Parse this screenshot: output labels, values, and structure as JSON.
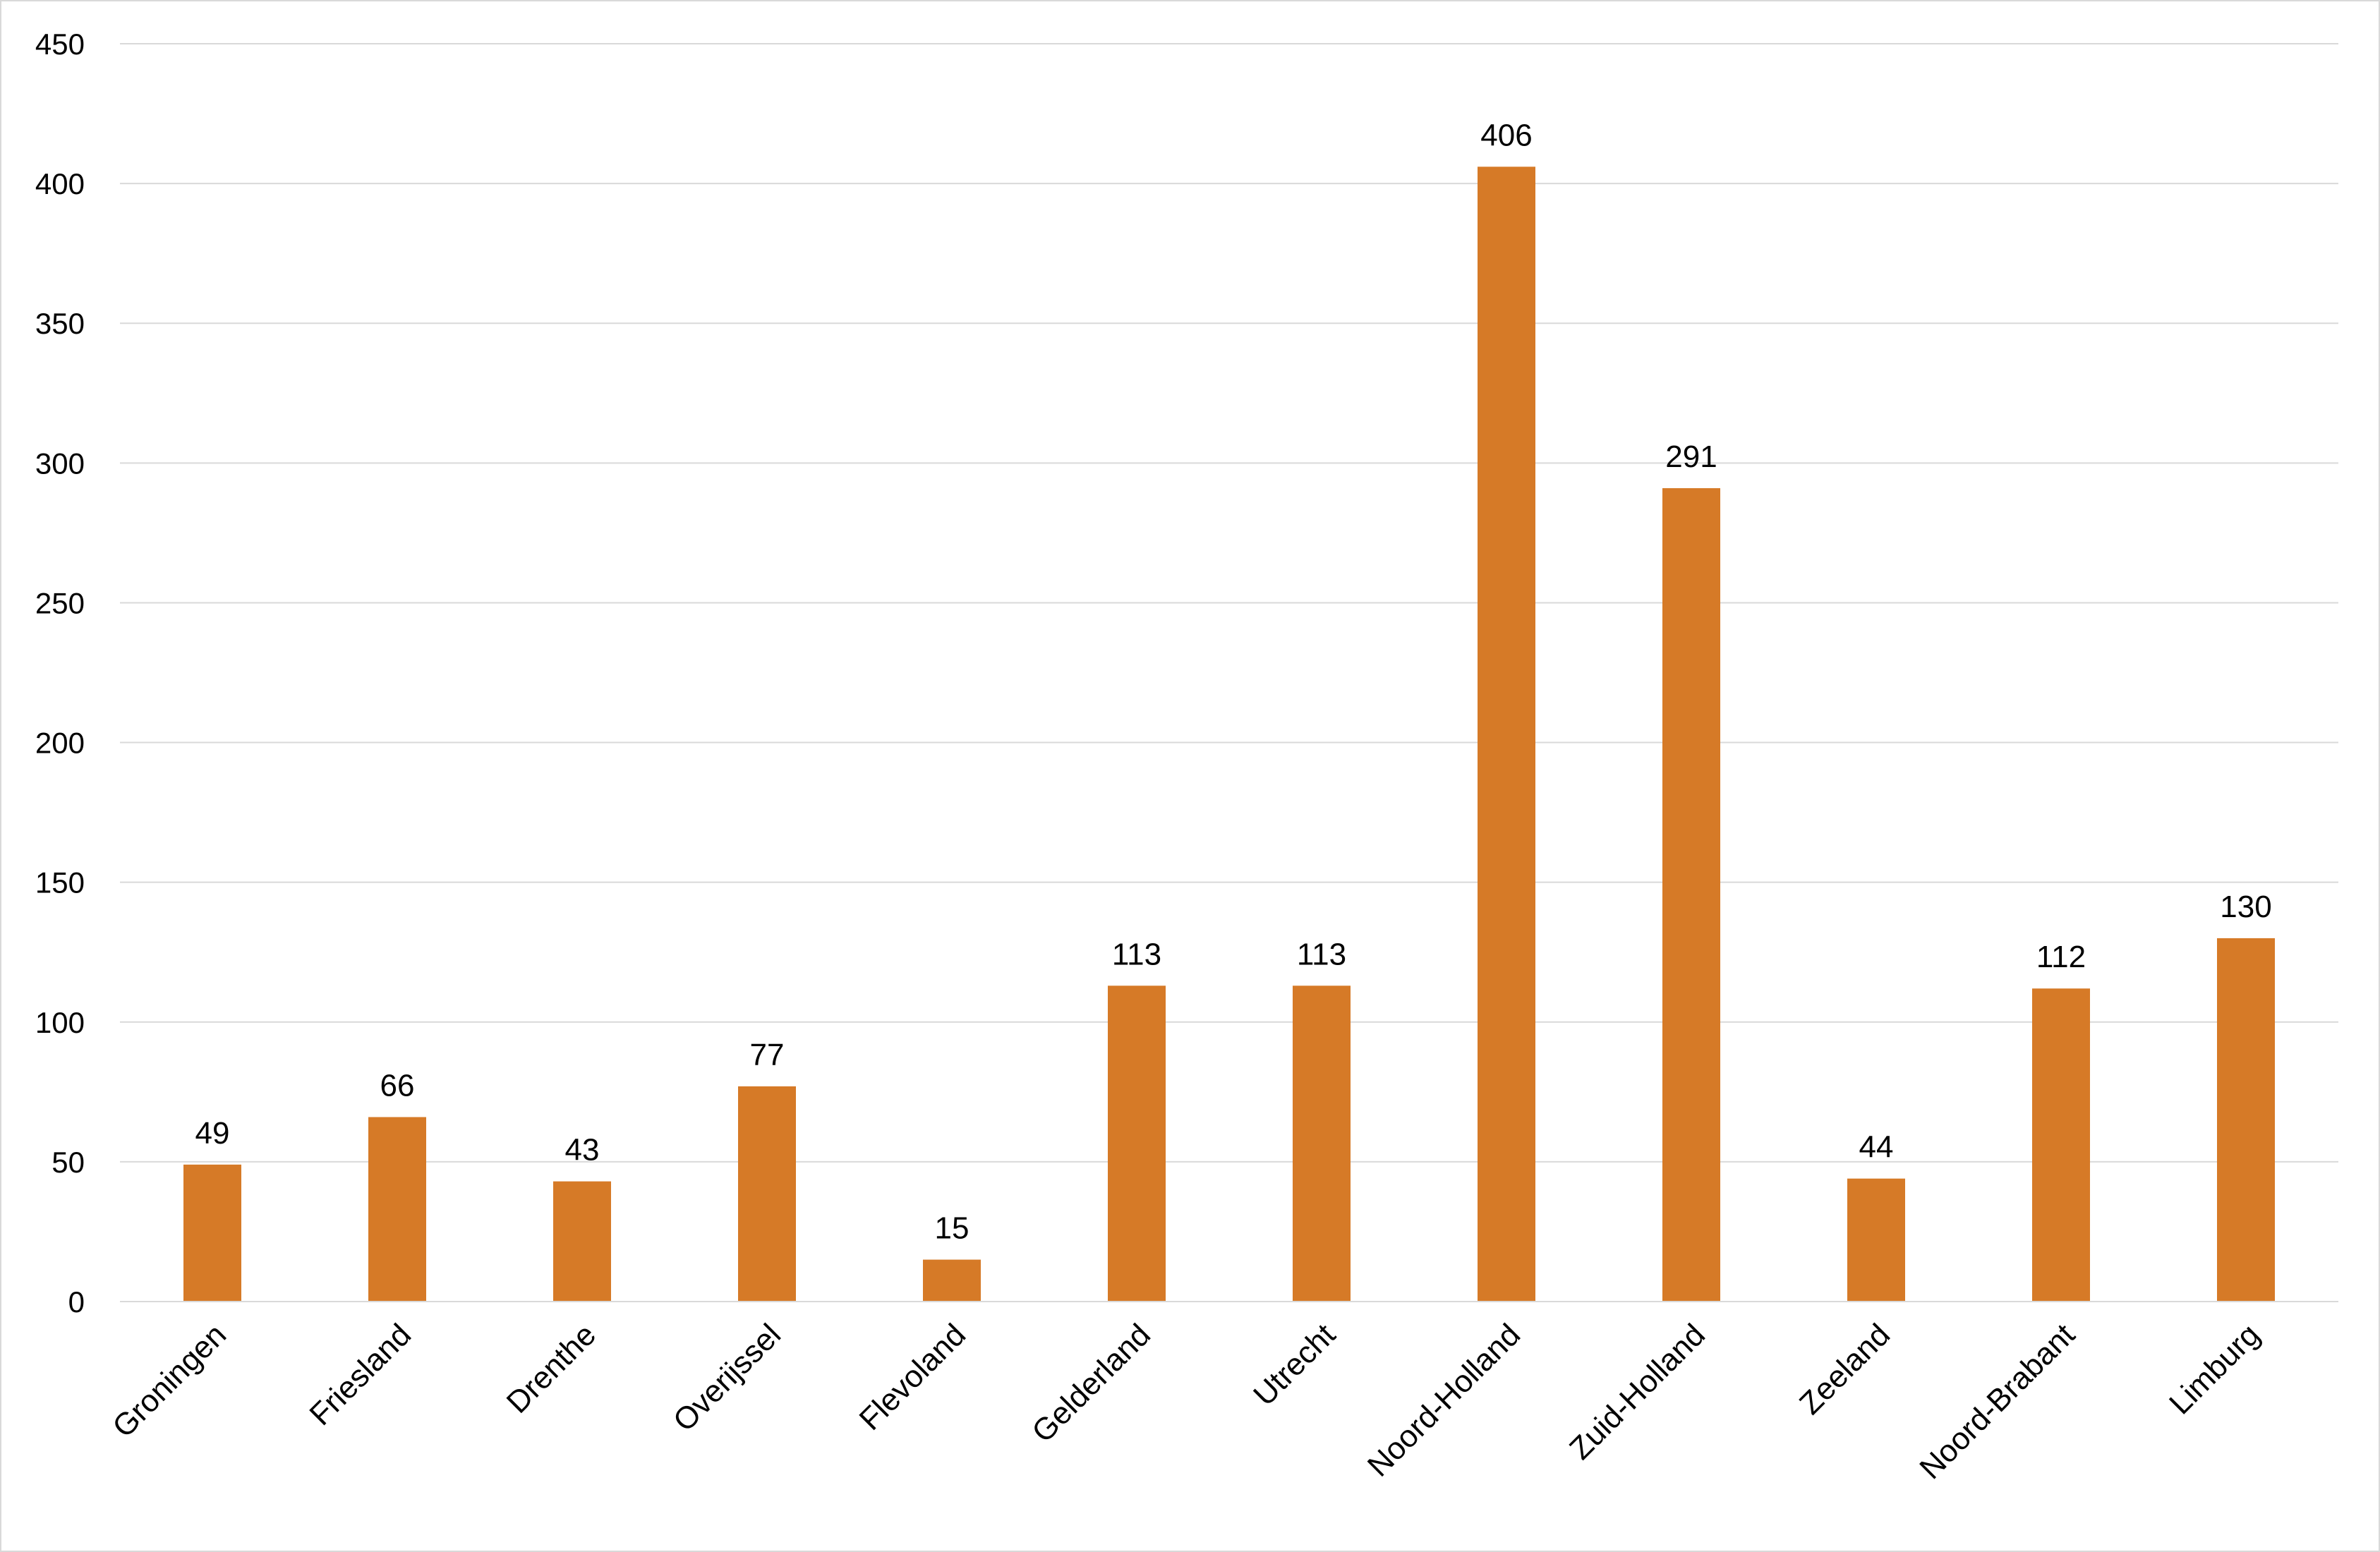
{
  "chart_data": {
    "type": "bar",
    "categories": [
      "Groningen",
      "Friesland",
      "Drenthe",
      "Overijssel",
      "Flevoland",
      "Gelderland",
      "Utrecht",
      "Noord-Holland",
      "Zuid-Holland",
      "Zeeland",
      "Noord-Brabant",
      "Limburg"
    ],
    "values": [
      49,
      66,
      43,
      77,
      15,
      113,
      113,
      406,
      291,
      44,
      112,
      130
    ],
    "data_labels": [
      "49",
      "66",
      "43",
      "77",
      "15",
      "113",
      "113",
      "406",
      "291",
      "44",
      "112",
      "130"
    ],
    "yticks": [
      0,
      50,
      100,
      150,
      200,
      250,
      300,
      350,
      400,
      450
    ],
    "ylim": [
      0,
      450
    ],
    "grid": true,
    "legend": "none",
    "bar_color": "#d67a27",
    "grid_color": "#d9d9d9"
  }
}
